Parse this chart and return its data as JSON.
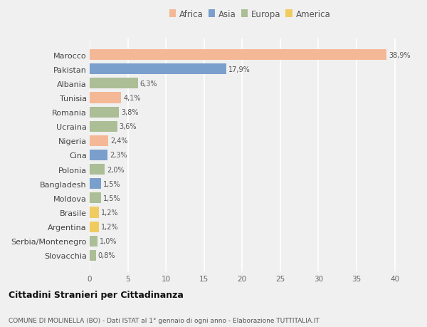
{
  "countries": [
    "Marocco",
    "Pakistan",
    "Albania",
    "Tunisia",
    "Romania",
    "Ucraina",
    "Nigeria",
    "Cina",
    "Polonia",
    "Bangladesh",
    "Moldova",
    "Brasile",
    "Argentina",
    "Serbia/Montenegro",
    "Slovacchia"
  ],
  "values": [
    38.9,
    17.9,
    6.3,
    4.1,
    3.8,
    3.6,
    2.4,
    2.3,
    2.0,
    1.5,
    1.5,
    1.2,
    1.2,
    1.0,
    0.8
  ],
  "labels": [
    "38,9%",
    "17,9%",
    "6,3%",
    "4,1%",
    "3,8%",
    "3,6%",
    "2,4%",
    "2,3%",
    "2,0%",
    "1,5%",
    "1,5%",
    "1,2%",
    "1,2%",
    "1,0%",
    "0,8%"
  ],
  "continents": [
    "Africa",
    "Asia",
    "Europa",
    "Africa",
    "Europa",
    "Europa",
    "Africa",
    "Asia",
    "Europa",
    "Asia",
    "Europa",
    "America",
    "America",
    "Europa",
    "Europa"
  ],
  "colors": {
    "Africa": "#F5B896",
    "Asia": "#7B9FCC",
    "Europa": "#ABBE96",
    "America": "#F0CC60"
  },
  "legend_order": [
    "Africa",
    "Asia",
    "Europa",
    "America"
  ],
  "title": "Cittadini Stranieri per Cittadinanza",
  "subtitle": "COMUNE DI MOLINELLA (BO) - Dati ISTAT al 1° gennaio di ogni anno - Elaborazione TUTTITALIA.IT",
  "xlim": [
    0,
    42
  ],
  "xticks": [
    0,
    5,
    10,
    15,
    20,
    25,
    30,
    35,
    40
  ],
  "plot_bg": "#f0f0f0",
  "fig_bg": "#f0f0f0",
  "grid_color": "#ffffff",
  "bar_height": 0.75
}
